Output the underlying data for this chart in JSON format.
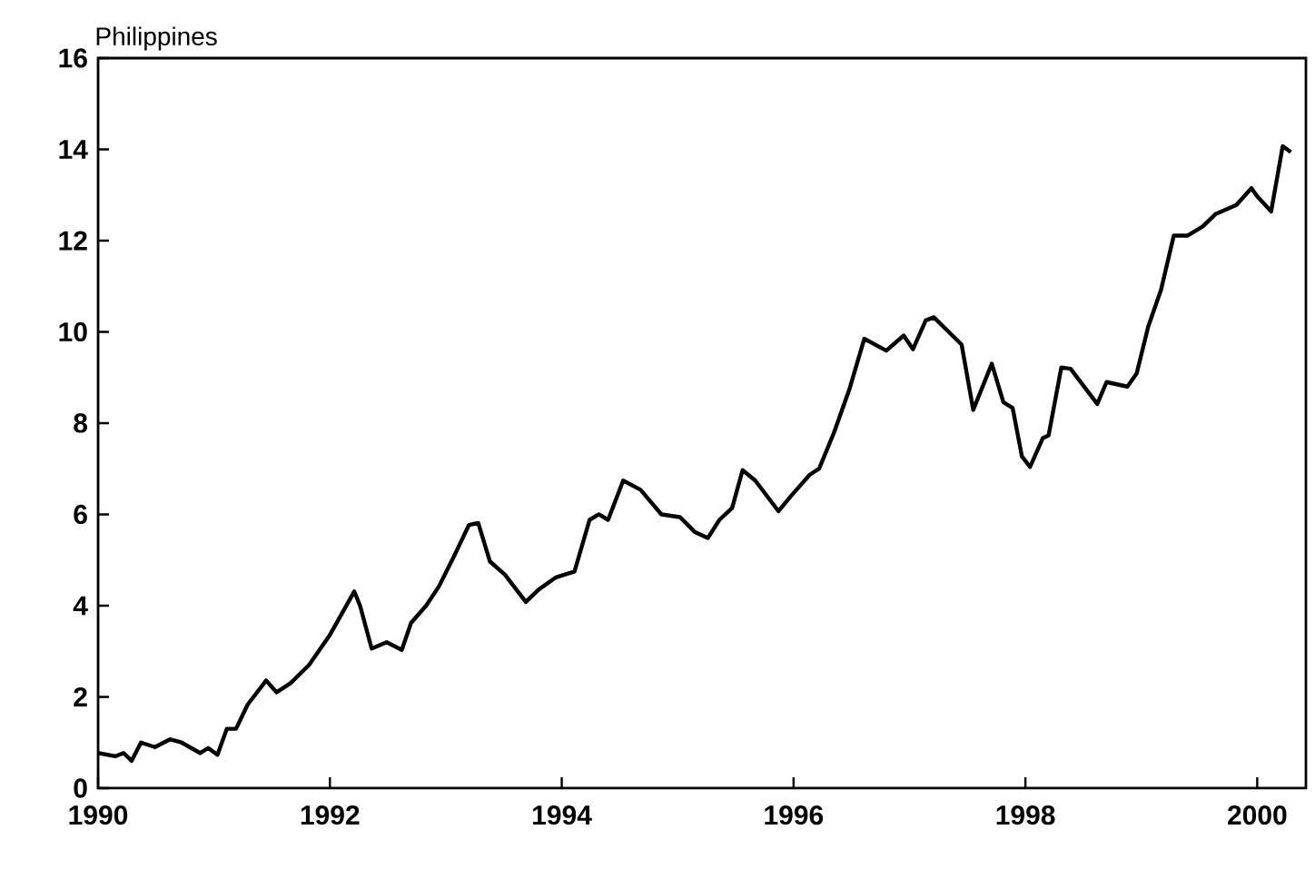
{
  "chart_data": {
    "type": "line",
    "title": "Philippines",
    "color": "#000000",
    "grid": false,
    "marker": "none",
    "line_style": "solid",
    "xlim": [
      1990,
      2000.42
    ],
    "ylim": [
      0,
      16
    ],
    "xticks": [
      1990,
      1992,
      1994,
      1996,
      1998,
      2000
    ],
    "yticks": [
      0,
      2,
      4,
      6,
      8,
      10,
      12,
      14,
      16
    ],
    "x": [
      1990.0,
      1990.15,
      1990.22,
      1990.29,
      1990.37,
      1990.49,
      1990.62,
      1990.72,
      1990.88,
      1990.95,
      1991.03,
      1991.11,
      1991.19,
      1991.29,
      1991.45,
      1991.54,
      1991.66,
      1991.82,
      1992.0,
      1992.21,
      1992.26,
      1992.36,
      1992.49,
      1992.62,
      1992.7,
      1992.83,
      1992.94,
      1993.07,
      1993.2,
      1993.28,
      1993.38,
      1993.51,
      1993.69,
      1993.8,
      1993.95,
      1994.11,
      1994.24,
      1994.32,
      1994.4,
      1994.53,
      1994.68,
      1994.86,
      1995.02,
      1995.15,
      1995.26,
      1995.36,
      1995.47,
      1995.56,
      1995.67,
      1995.87,
      1995.98,
      1996.14,
      1996.22,
      1996.35,
      1996.48,
      1996.61,
      1996.8,
      1996.95,
      1997.03,
      1997.14,
      1997.21,
      1997.45,
      1997.55,
      1997.71,
      1997.81,
      1997.89,
      1997.97,
      1998.04,
      1998.15,
      1998.2,
      1998.31,
      1998.39,
      1998.62,
      1998.7,
      1998.88,
      1998.96,
      1999.06,
      1999.17,
      1999.28,
      1999.4,
      1999.53,
      1999.64,
      1999.82,
      1999.95,
      2000.0,
      2000.12,
      2000.22,
      2000.29
    ],
    "values": [
      0.77,
      0.7,
      0.77,
      0.6,
      1.0,
      0.9,
      1.07,
      1.0,
      0.77,
      0.88,
      0.73,
      1.3,
      1.3,
      1.83,
      2.36,
      2.1,
      2.3,
      2.7,
      3.36,
      4.31,
      4.0,
      3.06,
      3.2,
      3.03,
      3.62,
      4.0,
      4.42,
      5.08,
      5.77,
      5.81,
      4.97,
      4.68,
      4.08,
      4.35,
      4.62,
      4.75,
      5.88,
      6.0,
      5.88,
      6.74,
      6.54,
      6.0,
      5.94,
      5.61,
      5.48,
      5.88,
      6.14,
      6.97,
      6.74,
      6.07,
      6.41,
      6.87,
      7.0,
      7.8,
      8.73,
      9.85,
      9.59,
      9.92,
      9.62,
      10.25,
      10.32,
      9.72,
      8.29,
      9.3,
      8.46,
      8.33,
      7.27,
      7.04,
      7.67,
      7.73,
      9.22,
      9.19,
      8.42,
      8.9,
      8.8,
      9.09,
      10.12,
      10.92,
      12.11,
      12.11,
      12.31,
      12.58,
      12.78,
      13.15,
      12.97,
      12.64,
      14.07,
      13.94
    ]
  }
}
